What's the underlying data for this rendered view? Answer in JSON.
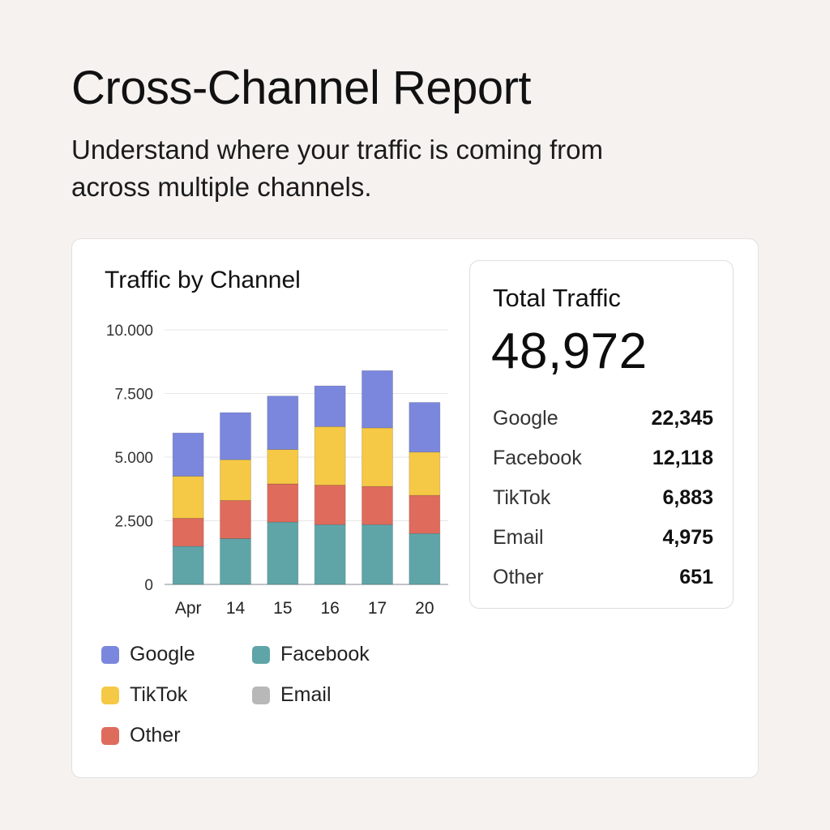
{
  "header": {
    "title": "Cross-Channel Report",
    "subtitle": "Understand where your traffic is coming from across multiple channels."
  },
  "colors": {
    "google": "#7b87dd",
    "facebook": "#5fa5a8",
    "tiktok": "#f5c945",
    "email": "#b8b8b8",
    "other": "#df6b5c"
  },
  "chart_data": {
    "type": "bar",
    "stacked": true,
    "title": "Traffic by Channel",
    "categories": [
      "Apr",
      "14",
      "15",
      "16",
      "17",
      "20"
    ],
    "y_ticks": [
      "10.000",
      "7.500",
      "5.000",
      "2.500",
      "0"
    ],
    "ylim": [
      0,
      10000
    ],
    "grid": true,
    "legend_position": "bottom",
    "series": [
      {
        "name": "Facebook",
        "color": "#5fa5a8",
        "values": [
          1500,
          1800,
          2450,
          2350,
          2350,
          2000
        ]
      },
      {
        "name": "Other",
        "color": "#df6b5c",
        "values": [
          1100,
          1500,
          1500,
          1550,
          1500,
          1500
        ]
      },
      {
        "name": "TikTok",
        "color": "#f5c945",
        "values": [
          1650,
          1600,
          1350,
          2300,
          2300,
          1700
        ]
      },
      {
        "name": "Google",
        "color": "#7b87dd",
        "values": [
          1700,
          1850,
          2100,
          1600,
          2250,
          1950
        ]
      }
    ],
    "legend": [
      {
        "name": "Google",
        "color": "#7b87dd"
      },
      {
        "name": "Facebook",
        "color": "#5fa5a8"
      },
      {
        "name": "TikTok",
        "color": "#f5c945"
      },
      {
        "name": "Email",
        "color": "#b8b8b8"
      },
      {
        "name": "Other",
        "color": "#df6b5c"
      }
    ]
  },
  "total": {
    "label": "Total Traffic",
    "value": "48,972",
    "rows": [
      {
        "name": "Google",
        "value": "22,345"
      },
      {
        "name": "Facebook",
        "value": "12,118"
      },
      {
        "name": "TikTok",
        "value": "6,883"
      },
      {
        "name": "Email",
        "value": "4,975"
      },
      {
        "name": "Other",
        "value": "651"
      }
    ]
  }
}
